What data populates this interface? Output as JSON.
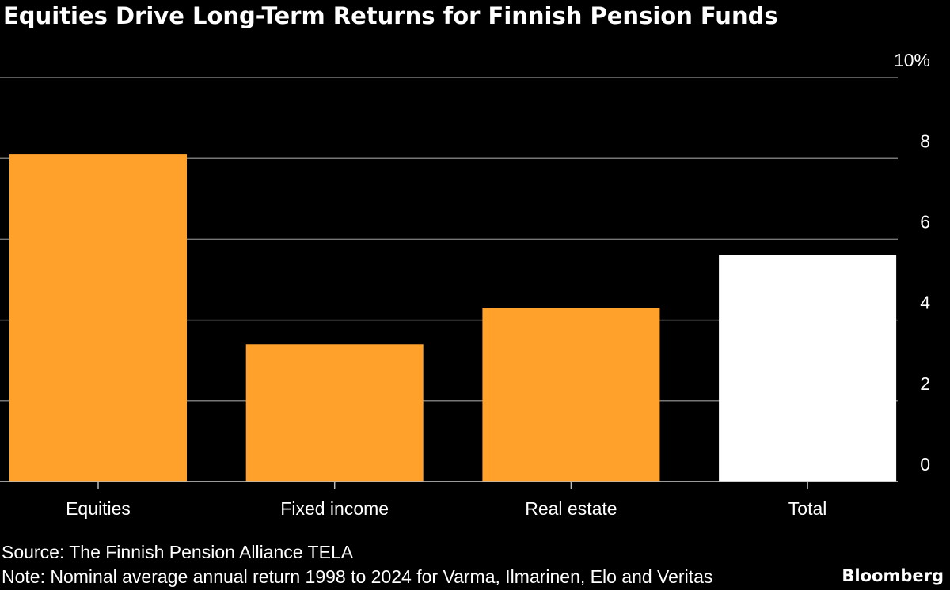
{
  "chart_data": {
    "type": "bar",
    "title": "Equities Drive Long-Term Returns for Finnish Pension Funds",
    "categories": [
      "Equities",
      "Fixed income",
      "Real estate",
      "Total"
    ],
    "values": [
      8.1,
      3.4,
      4.3,
      5.6
    ],
    "colors": [
      "#ffa12b",
      "#ffa12b",
      "#ffa12b",
      "#ffffff"
    ],
    "ylim": [
      0,
      10
    ],
    "yticks": [
      0,
      2,
      4,
      6,
      8,
      {
        "value": 10,
        "label": "10%"
      }
    ],
    "grid": true,
    "source": "Source: The Finnish Pension Alliance TELA",
    "note": "Note: Nominal average annual return 1998 to 2024 for Varma, Ilmarinen, Elo and Veritas",
    "brand": "Bloomberg"
  }
}
